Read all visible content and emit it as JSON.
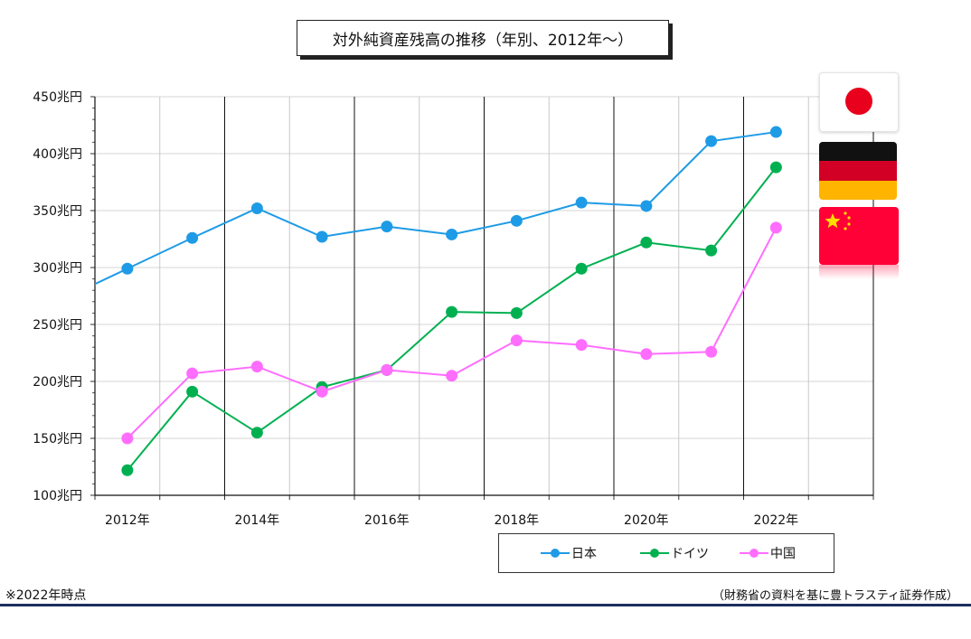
{
  "chart_data": {
    "type": "line",
    "title": "対外純資産残高の推移（年別、2012年～）",
    "x": [
      "2012",
      "2013",
      "2014",
      "2015",
      "2016",
      "2017",
      "2018",
      "2019",
      "2020",
      "2021",
      "2022"
    ],
    "xticks": [
      "2012年",
      "2014年",
      "2016年",
      "2018年",
      "2020年",
      "2022年"
    ],
    "yticks": [
      "100兆円",
      "150兆円",
      "200兆円",
      "250兆円",
      "300兆円",
      "350兆円",
      "400兆円",
      "450兆円"
    ],
    "ylim": [
      100,
      450
    ],
    "grid": true,
    "legend": "bottom-right",
    "series": [
      {
        "name": "日本",
        "color": "#1e9be6",
        "values": [
          299,
          326,
          352,
          327,
          336,
          329,
          341,
          357,
          354,
          411,
          419
        ]
      },
      {
        "name": "ドイツ",
        "color": "#00b050",
        "values": [
          122,
          191,
          155,
          195,
          210,
          261,
          260,
          299,
          322,
          315,
          388
        ]
      },
      {
        "name": "中国",
        "color": "#ff6dff",
        "values": [
          150,
          207,
          213,
          191,
          210,
          205,
          236,
          232,
          224,
          226,
          335
        ]
      }
    ]
  },
  "footnote_left": "※2022年時点",
  "footnote_right": "（財務省の資料を基に豊トラスティ証券作成）",
  "flags": [
    {
      "country": "日本",
      "icon": "japan-flag-icon"
    },
    {
      "country": "ドイツ",
      "icon": "germany-flag-icon"
    },
    {
      "country": "中国",
      "icon": "china-flag-icon"
    }
  ]
}
